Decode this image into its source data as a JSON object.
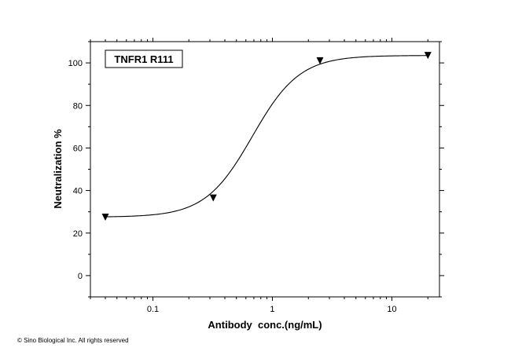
{
  "chart_data": {
    "type": "scatter",
    "xscale": "log",
    "xlabel": "Antibody  conc.(ng/mL)",
    "ylabel": "Neutralization %",
    "xlim": [
      0.03,
      25
    ],
    "ylim": [
      -10,
      110
    ],
    "xticks": [
      0.1,
      1,
      10
    ],
    "xtick_labels": [
      "0.1",
      "1",
      "10"
    ],
    "yticks": [
      0,
      20,
      40,
      60,
      80,
      100
    ],
    "ytick_labels": [
      "0",
      "20",
      "40",
      "60",
      "80",
      "100"
    ],
    "legend_placement": "top-left",
    "grid": false,
    "series": [
      {
        "name": "TNFR1 R111",
        "marker": "down-triangle",
        "color": "#000000",
        "x": [
          0.04,
          0.32,
          2.5,
          20
        ],
        "y": [
          27.5,
          36.5,
          101,
          103.5
        ],
        "fit": {
          "type": "four-parameter logistic",
          "bottom": 27.5,
          "top": 103.5,
          "ec50": 0.68,
          "hill": 2.2
        }
      }
    ]
  },
  "footer": {
    "copyright": "© Sino Biological Inc. All rights reserved"
  }
}
